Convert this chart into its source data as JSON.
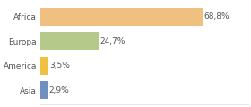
{
  "categories": [
    "Africa",
    "Europa",
    "America",
    "Asia"
  ],
  "values": [
    68.8,
    24.7,
    3.5,
    2.9
  ],
  "labels": [
    "68,8%",
    "24,7%",
    "3,5%",
    "2,9%"
  ],
  "bar_colors": [
    "#f0c080",
    "#b5c98a",
    "#f0c040",
    "#7090c0"
  ],
  "background_color": "#ffffff",
  "xlim": [
    0,
    88
  ],
  "bar_height": 0.72,
  "label_fontsize": 6.5,
  "tick_fontsize": 6.5,
  "grid_color": "#dddddd"
}
